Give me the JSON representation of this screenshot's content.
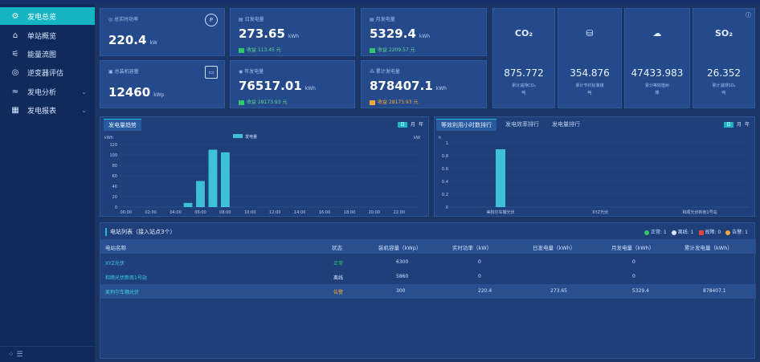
{
  "sidebar": {
    "items": [
      {
        "icon": "gear-icon",
        "glyph": "⚙",
        "label": "发电总览",
        "active": true,
        "arrow": ""
      },
      {
        "icon": "home-icon",
        "glyph": "⌂",
        "label": "单站概览",
        "active": false,
        "arrow": ""
      },
      {
        "icon": "flow-icon",
        "glyph": "⚟",
        "label": "能量流图",
        "active": false,
        "arrow": ""
      },
      {
        "icon": "inverter-icon",
        "glyph": "◎",
        "label": "逆变器评估",
        "active": false,
        "arrow": ""
      },
      {
        "icon": "analysis-icon",
        "glyph": "≈",
        "label": "发电分析",
        "active": false,
        "arrow": "⌄"
      },
      {
        "icon": "report-icon",
        "glyph": "▦",
        "label": "发电报表",
        "active": false,
        "arrow": "⌄"
      }
    ],
    "footer_glyph": "⁘ ☰"
  },
  "kpis": {
    "realtime_power": {
      "label": "总实时功率",
      "value": "220.4",
      "unit": "kW",
      "icon": "P"
    },
    "installed_capacity": {
      "label": "总装机容量",
      "value": "12460",
      "unit": "kWp",
      "icon": "▭"
    },
    "daily_generation": {
      "label": "日发电量",
      "value": "273.65",
      "unit": "kWh",
      "income": "收益  113.45 元"
    },
    "monthly_generation": {
      "label": "月发电量",
      "value": "5329.4",
      "unit": "kWh",
      "income": "收益  2209.57 元"
    },
    "yearly_generation": {
      "label": "年发电量",
      "value": "76517.01",
      "unit": "kWh",
      "income": "收益  28173.93 元"
    },
    "total_generation": {
      "label": "累计发电量",
      "value": "878407.1",
      "unit": "kWh",
      "income": "收益  28173.93 元"
    }
  },
  "environment": [
    {
      "icon": "co2-icon",
      "glyph": "CO₂",
      "value": "875.772",
      "label": "累计减排CO₂\n吨"
    },
    {
      "icon": "coal-icon",
      "glyph": "⛁",
      "value": "354.876",
      "label": "累计节约标准煤\n吨"
    },
    {
      "icon": "tree-icon",
      "glyph": "☁",
      "value": "47433.983",
      "label": "累计等效植树\n棵"
    },
    {
      "icon": "so2-icon",
      "glyph": "SO₂",
      "value": "26.352",
      "label": "累计减排SO₂\n吨"
    }
  ],
  "trend_panel": {
    "tab": "发电量趋势",
    "seg": [
      "日",
      "月",
      "年"
    ],
    "y_unit_left": "kWh",
    "y_unit_right": "kW",
    "legend": "发电量"
  },
  "rank_panel": {
    "tabs": [
      "等效利用小时数排行",
      "发电效率排行",
      "发电量排行"
    ],
    "seg": [
      "日",
      "月",
      "年"
    ],
    "y_unit": "h"
  },
  "chart_data": [
    {
      "type": "bar",
      "categories": [
        "00:00",
        "01:00",
        "02:00",
        "03:00",
        "04:00",
        "05:00",
        "06:00",
        "07:00",
        "08:00",
        "09:00",
        "10:00",
        "11:00",
        "12:00",
        "13:00",
        "14:00",
        "15:00",
        "16:00",
        "17:00",
        "18:00",
        "19:00",
        "20:00",
        "21:00",
        "22:00",
        "23:00"
      ],
      "x_tick_labels": [
        "00:00",
        "02:00",
        "04:00",
        "06:00",
        "08:00",
        "10:00",
        "12:00",
        "14:00",
        "16:00",
        "18:00",
        "20:00",
        "22:00"
      ],
      "series": [
        {
          "name": "发电量",
          "values": [
            0,
            0,
            0,
            0,
            0,
            8,
            50,
            110,
            105,
            0,
            0,
            0,
            0,
            0,
            0,
            0,
            0,
            0,
            0,
            0,
            0,
            0,
            0,
            0
          ]
        }
      ],
      "ylabel": "kWh",
      "ylim": [
        0,
        120
      ],
      "yticks": [
        0,
        20,
        40,
        60,
        80,
        100,
        120
      ],
      "grid": true
    },
    {
      "type": "bar",
      "categories": [
        "美狗尔车棚光伏",
        "XYZ光伏",
        "和顺光伏新南1号站"
      ],
      "values": [
        0.9,
        0,
        0
      ],
      "ylabel": "h",
      "ylim": [
        0,
        1
      ],
      "yticks": [
        0,
        0.2,
        0.4,
        0.6,
        0.8,
        1
      ],
      "grid": true
    }
  ],
  "station_table": {
    "title": "电站列表（接入站点3个）",
    "status_legend": [
      {
        "color": "#2fc76a",
        "label": "正常: 1"
      },
      {
        "color": "#d8e6ff",
        "label": "离线: 1"
      },
      {
        "color": "#e2453c",
        "label": "故障: 0"
      },
      {
        "color": "#f2a93b",
        "label": "告警: 1"
      }
    ],
    "headers": [
      "电站名称",
      "状态",
      "装机容量（kWp）",
      "实时功率（kW）",
      "日发电量（kWh）",
      "月发电量（kWh）",
      "累计发电量（kWh）"
    ],
    "rows": [
      {
        "name": "XYZ光伏",
        "status": "正常",
        "status_color": "#2fc76a",
        "capacity": "6300",
        "power": "0",
        "daily": "",
        "monthly": "0",
        "total": ""
      },
      {
        "name": "和顺光伏新南1号站",
        "status": "离线",
        "status_color": "#d8e6ff",
        "capacity": "5860",
        "power": "0",
        "daily": "",
        "monthly": "0",
        "total": ""
      },
      {
        "name": "美狗尔车棚光伏",
        "status": "告警",
        "status_color": "#f2a93b",
        "capacity": "300",
        "power": "220.4",
        "daily": "273.65",
        "monthly": "5329.4",
        "total": "878407.1"
      }
    ]
  },
  "colors": {
    "accent": "#13b5c3",
    "bar": "#3ec1d8"
  }
}
